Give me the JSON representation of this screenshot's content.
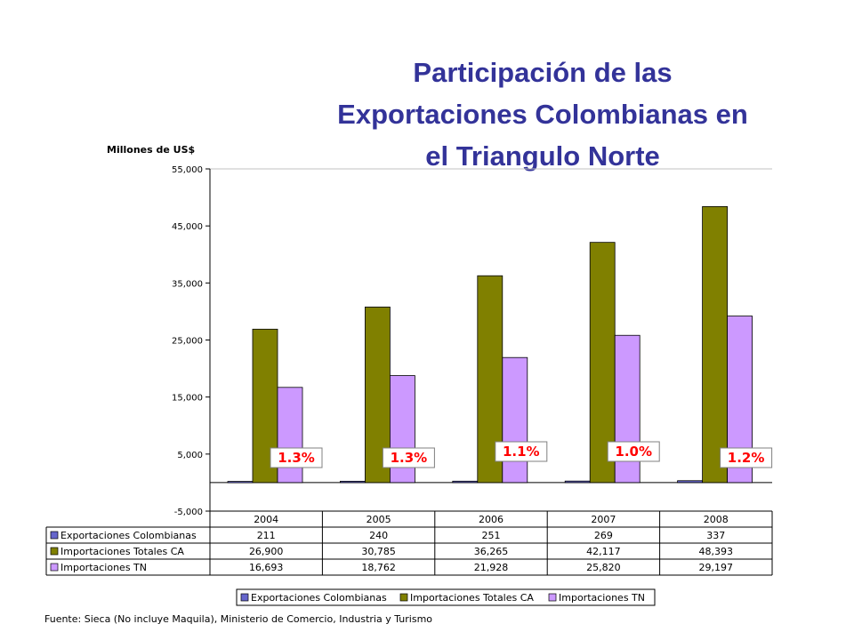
{
  "title_lines": [
    "Participación de las",
    "Exportaciones Colombianas en",
    "el Triangulo Norte"
  ],
  "source_note": "Fuente: Sieca (No incluye Maquila), Ministerio de Comercio, Industria y Turismo",
  "chart_data": {
    "type": "bar",
    "title": "Participación de las Exportaciones Colombianas en el Triangulo Norte",
    "ylabel": "Millones de US$",
    "xlabel": "",
    "ylim": [
      -5000,
      55000
    ],
    "yticks": [
      -5000,
      5000,
      15000,
      25000,
      35000,
      45000,
      55000
    ],
    "ytick_labels": [
      "-5,000",
      "5,000",
      "15,000",
      "25,000",
      "35,000",
      "45,000",
      "55,000"
    ],
    "categories": [
      "2004",
      "2005",
      "2006",
      "2007",
      "2008"
    ],
    "series": [
      {
        "name": "Exportaciones Colombianas",
        "color": "#6666cc",
        "values": [
          211,
          240,
          251,
          269,
          337
        ],
        "labels": [
          "211",
          "240",
          "251",
          "269",
          "337"
        ]
      },
      {
        "name": "Importaciones Totales CA",
        "color": "#808000",
        "values": [
          26900,
          30785,
          36265,
          42117,
          48393
        ],
        "labels": [
          "26,900",
          "30,785",
          "36,265",
          "42,117",
          "48,393"
        ]
      },
      {
        "name": "Importaciones TN",
        "color": "#cc99ff",
        "values": [
          16693,
          18762,
          21928,
          25820,
          29197
        ],
        "labels": [
          "16,693",
          "18,762",
          "21,928",
          "25,820",
          "29,197"
        ]
      }
    ],
    "annotations": [
      "1.3%",
      "1.3%",
      "1.1%",
      "1.0%",
      "1.2%"
    ],
    "grid": false,
    "legend_position": "bottom",
    "data_table": true
  }
}
